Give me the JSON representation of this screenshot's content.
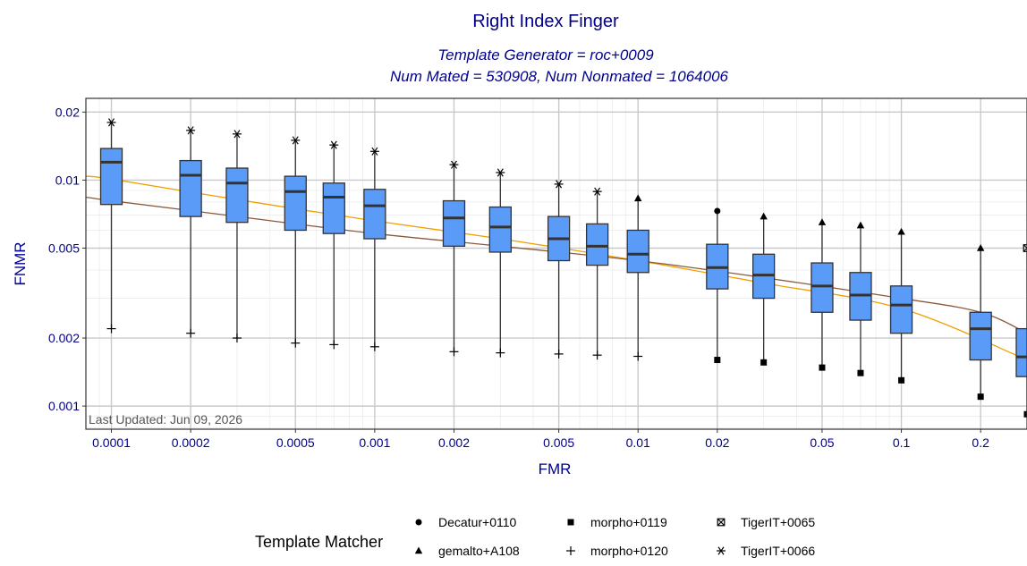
{
  "chart_data": {
    "type": "boxplot",
    "title": "Right Index Finger",
    "subtitle_line1": "Template Generator = roc+0009",
    "subtitle_line2": "Num Mated = 530908, Num Nonmated = 1064006",
    "xlabel": "FMR",
    "ylabel": "FNMR",
    "x_scale": "log",
    "y_scale": "log",
    "xlim": [
      8e-05,
      0.3
    ],
    "ylim": [
      0.00079,
      0.023
    ],
    "x_ticks": [
      0.0001,
      0.0002,
      0.0005,
      0.001,
      0.002,
      0.005,
      0.01,
      0.02,
      0.05,
      0.1,
      0.2
    ],
    "x_tick_labels": [
      "0.0001",
      "0.0002",
      "0.0005",
      "0.001",
      "0.002",
      "0.005",
      "0.01",
      "0.02",
      "0.05",
      "0.1",
      "0.2"
    ],
    "y_ticks": [
      0.001,
      0.002,
      0.005,
      0.01,
      0.02
    ],
    "y_tick_labels": [
      "0.001",
      "0.002",
      "0.005",
      "0.01",
      "0.02"
    ],
    "annotation": "Last Updated: Jun 09, 2026",
    "grid": true,
    "box_color": "#5b9bf8",
    "boxes": [
      {
        "fmr": 0.0001,
        "lower": 0.0022,
        "q1": 0.0078,
        "median": 0.012,
        "q3": 0.0138,
        "upper": 0.018,
        "lower_marker": "morpho+0120",
        "upper_marker": "TigerIT+0066"
      },
      {
        "fmr": 0.0002,
        "lower": 0.0021,
        "q1": 0.0069,
        "median": 0.0105,
        "q3": 0.0122,
        "upper": 0.0166,
        "lower_marker": "morpho+0120",
        "upper_marker": "TigerIT+0066"
      },
      {
        "fmr": 0.0003,
        "lower": 0.002,
        "q1": 0.0065,
        "median": 0.0097,
        "q3": 0.0113,
        "upper": 0.016,
        "lower_marker": "morpho+0120",
        "upper_marker": "TigerIT+0066"
      },
      {
        "fmr": 0.0005,
        "lower": 0.0019,
        "q1": 0.006,
        "median": 0.0089,
        "q3": 0.0104,
        "upper": 0.015,
        "lower_marker": "morpho+0120",
        "upper_marker": "TigerIT+0066"
      },
      {
        "fmr": 0.0007,
        "lower": 0.00187,
        "q1": 0.0058,
        "median": 0.0084,
        "q3": 0.0097,
        "upper": 0.0143,
        "lower_marker": "morpho+0120",
        "upper_marker": "TigerIT+0066"
      },
      {
        "fmr": 0.001,
        "lower": 0.00183,
        "q1": 0.0055,
        "median": 0.0077,
        "q3": 0.0091,
        "upper": 0.0134,
        "lower_marker": "morpho+0120",
        "upper_marker": "TigerIT+0066"
      },
      {
        "fmr": 0.002,
        "lower": 0.00174,
        "q1": 0.0051,
        "median": 0.0068,
        "q3": 0.0081,
        "upper": 0.0117,
        "lower_marker": "morpho+0120",
        "upper_marker": "TigerIT+0066"
      },
      {
        "fmr": 0.003,
        "lower": 0.00172,
        "q1": 0.0048,
        "median": 0.0062,
        "q3": 0.0076,
        "upper": 0.0108,
        "lower_marker": "morpho+0120",
        "upper_marker": "TigerIT+0066"
      },
      {
        "fmr": 0.005,
        "lower": 0.0017,
        "q1": 0.0044,
        "median": 0.0055,
        "q3": 0.0069,
        "upper": 0.0096,
        "lower_marker": "morpho+0120",
        "upper_marker": "TigerIT+0066"
      },
      {
        "fmr": 0.007,
        "lower": 0.00168,
        "q1": 0.0042,
        "median": 0.0051,
        "q3": 0.0064,
        "upper": 0.0089,
        "lower_marker": "morpho+0120",
        "upper_marker": "TigerIT+0066"
      },
      {
        "fmr": 0.01,
        "lower": 0.00166,
        "q1": 0.0039,
        "median": 0.0047,
        "q3": 0.006,
        "upper": 0.0083,
        "lower_marker": "morpho+0120",
        "upper_marker": "gemalto+A108"
      },
      {
        "fmr": 0.02,
        "lower": 0.0016,
        "q1": 0.0033,
        "median": 0.0041,
        "q3": 0.0052,
        "upper": 0.0073,
        "lower_marker": "morpho+0119",
        "upper_marker": "Decatur+0110"
      },
      {
        "fmr": 0.03,
        "lower": 0.00156,
        "q1": 0.003,
        "median": 0.0038,
        "q3": 0.0047,
        "upper": 0.0069,
        "lower_marker": "morpho+0119",
        "upper_marker": "gemalto+A108"
      },
      {
        "fmr": 0.05,
        "lower": 0.00148,
        "q1": 0.0026,
        "median": 0.0034,
        "q3": 0.0043,
        "upper": 0.0065,
        "lower_marker": "morpho+0119",
        "upper_marker": "gemalto+A108"
      },
      {
        "fmr": 0.07,
        "lower": 0.0014,
        "q1": 0.0024,
        "median": 0.0031,
        "q3": 0.0039,
        "upper": 0.0063,
        "lower_marker": "morpho+0119",
        "upper_marker": "gemalto+A108"
      },
      {
        "fmr": 0.1,
        "lower": 0.0013,
        "q1": 0.0021,
        "median": 0.0028,
        "q3": 0.0034,
        "upper": 0.0059,
        "lower_marker": "morpho+0119",
        "upper_marker": "gemalto+A108"
      },
      {
        "fmr": 0.2,
        "lower": 0.0011,
        "q1": 0.0016,
        "median": 0.0022,
        "q3": 0.0026,
        "upper": 0.005,
        "lower_marker": "morpho+0119",
        "upper_marker": "gemalto+A108"
      },
      {
        "fmr": 0.3,
        "lower": 0.00092,
        "q1": 0.00135,
        "median": 0.00165,
        "q3": 0.0022,
        "upper": 0.005,
        "lower_marker": "morpho+0119",
        "upper_marker": "TigerIT+0065"
      }
    ],
    "fit_lines": [
      {
        "color": "#f0a000",
        "x": [
          8e-05,
          0.0001,
          0.0003,
          0.001,
          0.003,
          0.01,
          0.03,
          0.1,
          0.3
        ],
        "y": [
          0.0104,
          0.0101,
          0.0082,
          0.0066,
          0.0055,
          0.0044,
          0.0035,
          0.0027,
          0.0016
        ]
      },
      {
        "color": "#8b5a3c",
        "x": [
          8e-05,
          0.0001,
          0.0003,
          0.001,
          0.003,
          0.01,
          0.03,
          0.1,
          0.2,
          0.3
        ],
        "y": [
          0.0084,
          0.0081,
          0.0069,
          0.0058,
          0.0051,
          0.0044,
          0.0037,
          0.003,
          0.0026,
          0.0021
        ]
      }
    ],
    "legend": {
      "title": "Template Matcher",
      "position": "bottom",
      "items": [
        {
          "label": "Decatur+0110",
          "marker": "circle"
        },
        {
          "label": "gemalto+A108",
          "marker": "triangle"
        },
        {
          "label": "morpho+0119",
          "marker": "square"
        },
        {
          "label": "morpho+0120",
          "marker": "plus"
        },
        {
          "label": "TigerIT+0065",
          "marker": "boxed-x"
        },
        {
          "label": "TigerIT+0066",
          "marker": "asterisk"
        }
      ]
    }
  }
}
